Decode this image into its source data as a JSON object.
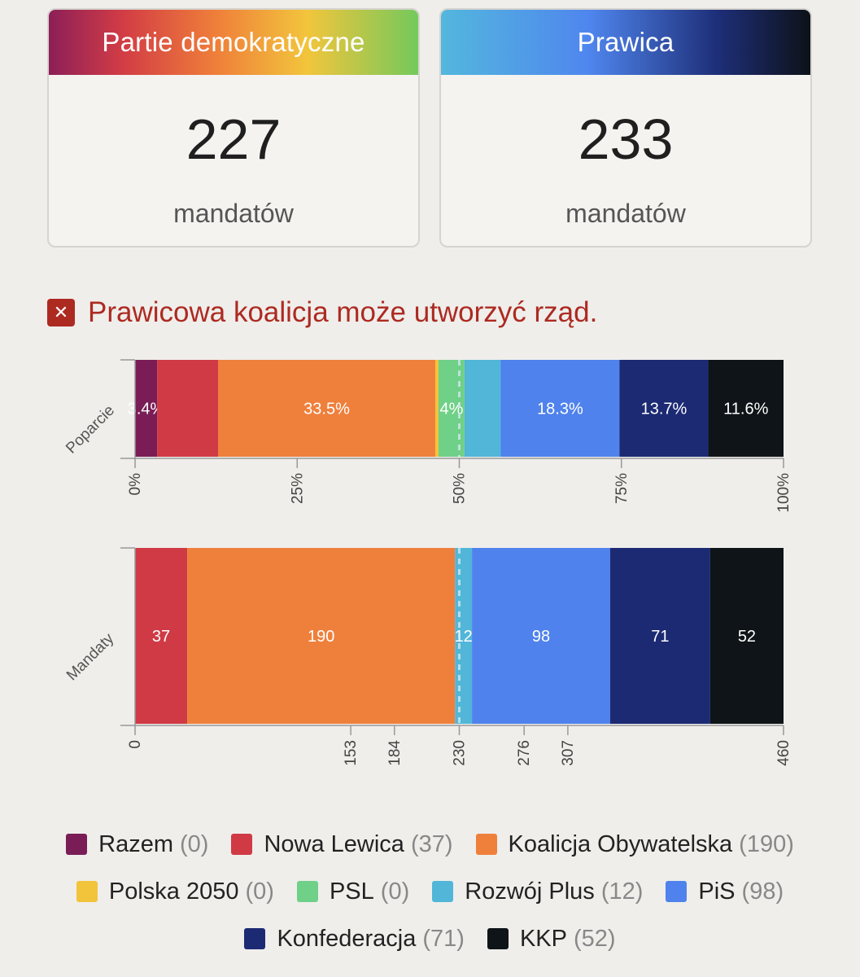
{
  "cards": {
    "left": {
      "title": "Partie demokratyczne",
      "value": "227",
      "unit": "mandatów"
    },
    "right": {
      "title": "Prawica",
      "value": "233",
      "unit": "mandatów"
    }
  },
  "status": {
    "icon": "close-icon",
    "text": "Prawicowa koalicja może utworzyć rząd."
  },
  "chart_data": [
    {
      "type": "bar",
      "orientation": "horizontal-stacked",
      "category": "Poparcie",
      "xlim": [
        0,
        100
      ],
      "ticks": [
        "0%",
        "25%",
        "50%",
        "75%",
        "100%"
      ],
      "midline": 50,
      "series": [
        {
          "name": "Razem",
          "value": 3.4,
          "label": "3.4%",
          "color": "#7a1d57"
        },
        {
          "name": "Nowa Lewica",
          "value": 9.4,
          "label": "",
          "color": "#d03a45"
        },
        {
          "name": "Koalicja Obywatelska",
          "value": 33.5,
          "label": "33.5%",
          "color": "#ef803c"
        },
        {
          "name": "Polska 2050",
          "value": 0.5,
          "label": "",
          "color": "#f2c43c"
        },
        {
          "name": "PSL",
          "value": 4,
          "label": "4%",
          "color": "#6fd087"
        },
        {
          "name": "Rozwój Plus",
          "value": 5.6,
          "label": "",
          "color": "#51b6d8"
        },
        {
          "name": "PiS",
          "value": 18.3,
          "label": "18.3%",
          "color": "#4f82ec"
        },
        {
          "name": "Konfederacja",
          "value": 13.7,
          "label": "13.7%",
          "color": "#1c2a74"
        },
        {
          "name": "KKP",
          "value": 11.6,
          "label": "11.6%",
          "color": "#0e1417"
        }
      ]
    },
    {
      "type": "bar",
      "orientation": "horizontal-stacked",
      "category": "Mandaty",
      "xlim": [
        0,
        460
      ],
      "ticks": [
        0,
        153,
        184,
        230,
        276,
        307,
        460
      ],
      "midline": 230,
      "series": [
        {
          "name": "Razem",
          "value": 0,
          "label": "",
          "color": "#7a1d57"
        },
        {
          "name": "Nowa Lewica",
          "value": 37,
          "label": "37",
          "color": "#d03a45"
        },
        {
          "name": "Koalicja Obywatelska",
          "value": 190,
          "label": "190",
          "color": "#ef803c"
        },
        {
          "name": "Polska 2050",
          "value": 0,
          "label": "",
          "color": "#f2c43c"
        },
        {
          "name": "PSL",
          "value": 0,
          "label": "",
          "color": "#6fd087"
        },
        {
          "name": "Rozwój Plus",
          "value": 12,
          "label": "12",
          "color": "#51b6d8"
        },
        {
          "name": "PiS",
          "value": 98,
          "label": "98",
          "color": "#4f82ec"
        },
        {
          "name": "Konfederacja",
          "value": 71,
          "label": "71",
          "color": "#1c2a74"
        },
        {
          "name": "KKP",
          "value": 52,
          "label": "52",
          "color": "#0e1417"
        }
      ]
    }
  ],
  "legend": [
    [
      {
        "name": "Razem",
        "count": "(0)",
        "color": "#7a1d57"
      },
      {
        "name": "Nowa Lewica",
        "count": "(37)",
        "color": "#d03a45"
      },
      {
        "name": "Koalicja Obywatelska",
        "count": "(190)",
        "color": "#ef803c"
      }
    ],
    [
      {
        "name": "Polska 2050",
        "count": "(0)",
        "color": "#f2c43c"
      },
      {
        "name": "PSL",
        "count": "(0)",
        "color": "#6fd087"
      },
      {
        "name": "Rozwój Plus",
        "count": "(12)",
        "color": "#51b6d8"
      },
      {
        "name": "PiS",
        "count": "(98)",
        "color": "#4f82ec"
      }
    ],
    [
      {
        "name": "Konfederacja",
        "count": "(71)",
        "color": "#1c2a74"
      },
      {
        "name": "KKP",
        "count": "(52)",
        "color": "#0e1417"
      }
    ]
  ]
}
